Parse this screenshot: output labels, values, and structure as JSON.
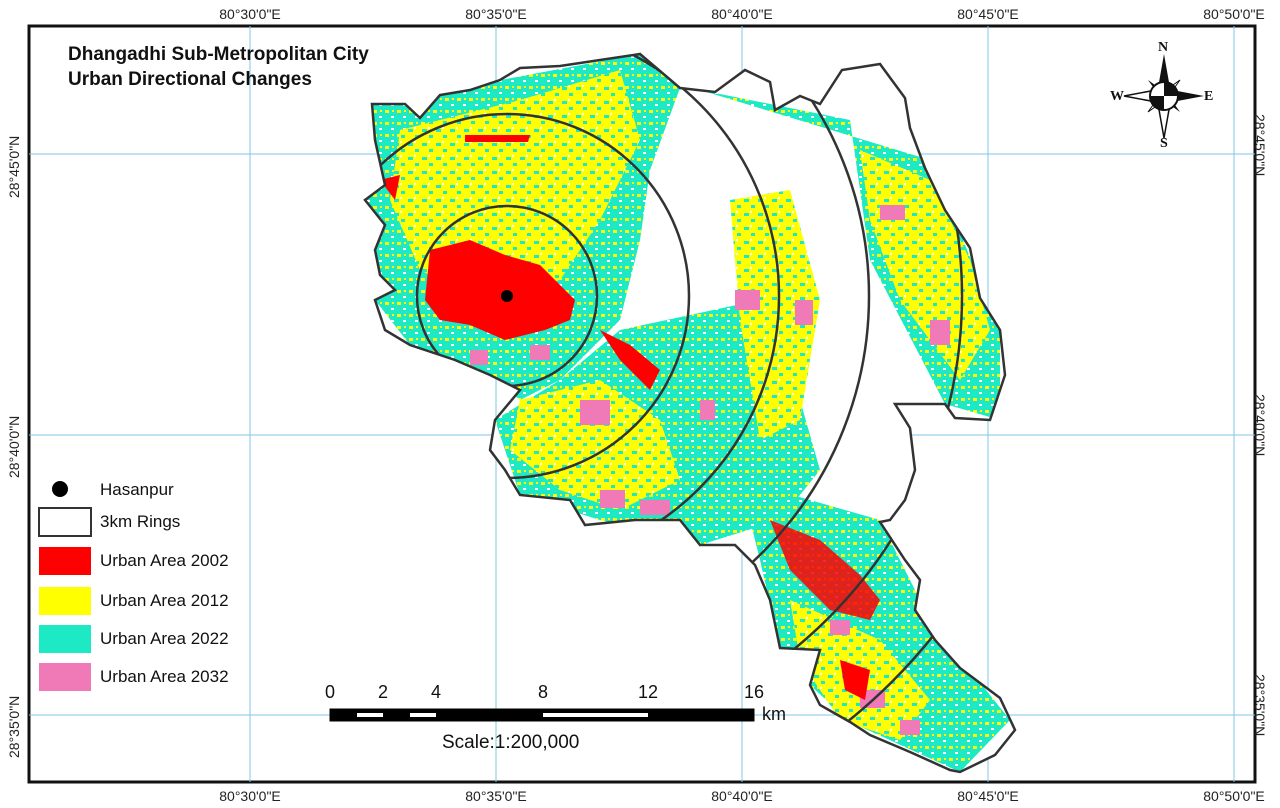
{
  "title": {
    "line1": "Dhangadhi Sub-Metropolitan City",
    "line2": "Urban Directional Changes"
  },
  "coordinates": {
    "longitude_labels": [
      "80°30'0\"E",
      "80°35'0\"E",
      "80°40'0\"E",
      "80°45'0\"E",
      "80°50'0\"E"
    ],
    "latitude_labels": [
      "28°45'0\"N",
      "28°40'0\"N",
      "28°35'0\"N"
    ]
  },
  "legend": {
    "hasanpur": "Hasanpur",
    "rings": "3km Rings",
    "urban_2002": "Urban Area 2002",
    "urban_2012": "Urban Area 2012",
    "urban_2022": "Urban Area 2022",
    "urban_2032": "Urban Area 2032"
  },
  "colors": {
    "urban_2002": "#ff0000",
    "urban_2012": "#ffff00",
    "urban_2022": "#1de9c4",
    "urban_2032": "#f07ab8",
    "grid": "#7fc7e6",
    "boundary": "#333333"
  },
  "scale_bar": {
    "ticks": [
      "0",
      "2",
      "4",
      "8",
      "12",
      "16"
    ],
    "unit": "km",
    "ratio": "Scale:1:200,000"
  },
  "north_arrow": {
    "n": "N",
    "s": "S",
    "e": "E",
    "w": "W"
  }
}
